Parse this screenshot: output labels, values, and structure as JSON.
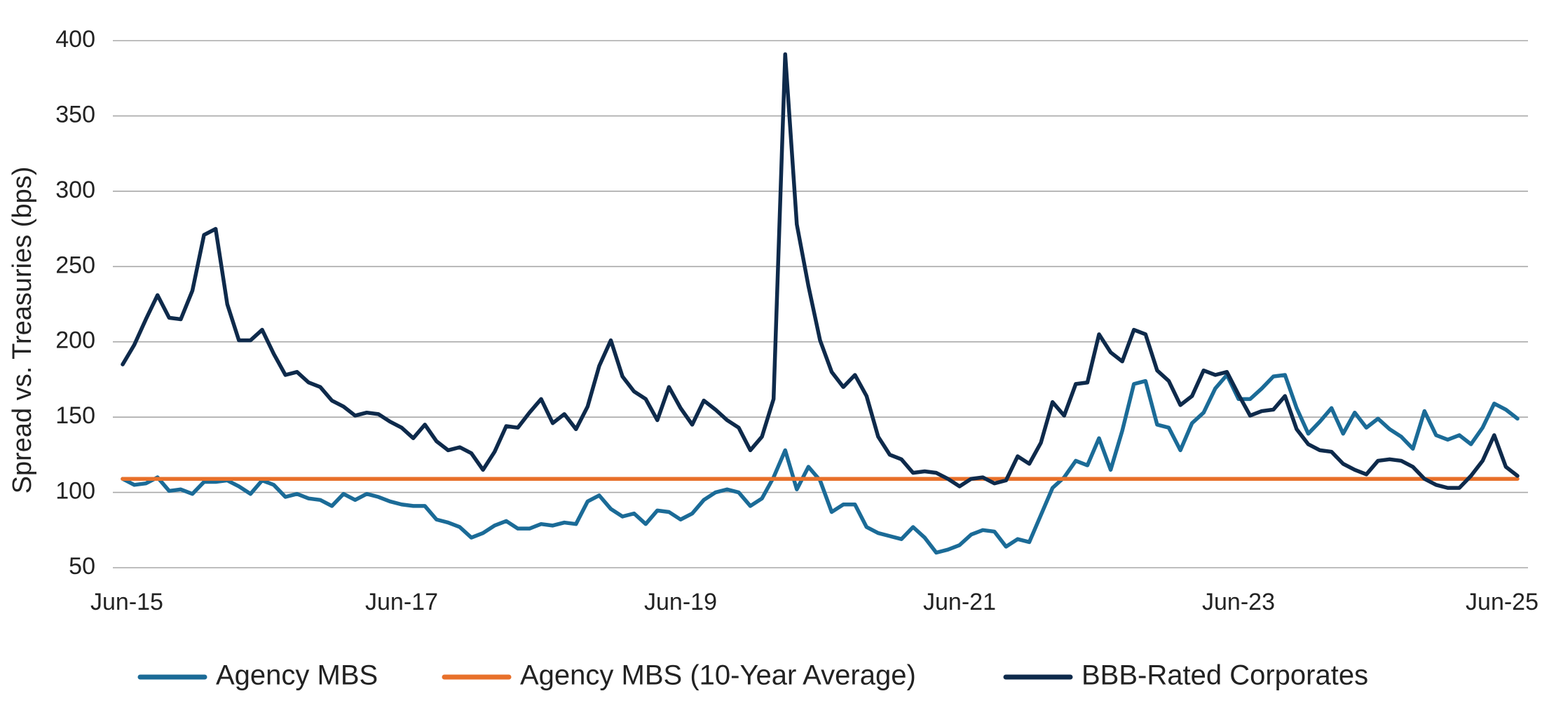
{
  "chart_data": {
    "type": "line",
    "y_label": "Spread vs. Treasuries (bps)",
    "categories": [
      "Jun-15",
      null,
      null,
      null,
      null,
      null,
      null,
      null,
      null,
      null,
      null,
      null,
      null,
      null,
      null,
      null,
      null,
      null,
      null,
      null,
      null,
      null,
      null,
      null,
      "Jun-17",
      null,
      null,
      null,
      null,
      null,
      null,
      null,
      null,
      null,
      null,
      null,
      null,
      null,
      null,
      null,
      null,
      null,
      null,
      null,
      null,
      null,
      null,
      null,
      "Jun-19",
      null,
      null,
      null,
      null,
      null,
      null,
      null,
      null,
      null,
      null,
      null,
      null,
      null,
      null,
      null,
      null,
      null,
      null,
      null,
      null,
      null,
      null,
      null,
      "Jun-21",
      null,
      null,
      null,
      null,
      null,
      null,
      null,
      null,
      null,
      null,
      null,
      null,
      null,
      null,
      null,
      null,
      null,
      null,
      null,
      null,
      null,
      null,
      null,
      "Jun-23",
      null,
      null,
      null,
      null,
      null,
      null,
      null,
      null,
      null,
      null,
      null,
      null,
      null,
      null,
      null,
      null,
      null,
      null,
      null,
      null,
      null,
      null,
      null,
      "Jun-25"
    ],
    "series": [
      {
        "name": "Agency MBS",
        "color": "#1b6b97",
        "values": [
          109,
          105,
          106,
          110,
          101,
          102,
          99,
          107,
          107,
          108,
          104,
          99,
          108,
          105,
          97,
          99,
          96,
          95,
          91,
          99,
          95,
          99,
          97,
          94,
          92,
          91,
          91,
          82,
          80,
          77,
          70,
          73,
          78,
          81,
          76,
          76,
          79,
          78,
          80,
          79,
          94,
          98,
          89,
          84,
          86,
          79,
          88,
          87,
          82,
          86,
          95,
          100,
          102,
          100,
          91,
          96,
          110,
          128,
          102,
          117,
          108,
          87,
          92,
          92,
          77,
          73,
          71,
          69,
          77,
          70,
          60,
          62,
          65,
          72,
          75,
          74,
          64,
          69,
          67,
          85,
          103,
          110,
          121,
          118,
          136,
          115,
          141,
          172,
          174,
          145,
          143,
          128,
          146,
          153,
          169,
          178,
          162,
          162,
          169,
          177,
          178,
          156,
          139,
          147,
          156,
          139,
          153,
          143,
          149,
          142,
          137,
          129,
          154,
          138,
          135,
          138,
          132,
          143,
          159,
          155,
          149
        ]
      },
      {
        "name": "Agency MBS (10-Year Average)",
        "color": "#e8702a",
        "values": [
          109,
          109,
          109,
          109,
          109,
          109,
          109,
          109,
          109,
          109,
          109,
          109,
          109,
          109,
          109,
          109,
          109,
          109,
          109,
          109,
          109,
          109,
          109,
          109,
          109,
          109,
          109,
          109,
          109,
          109,
          109,
          109,
          109,
          109,
          109,
          109,
          109,
          109,
          109,
          109,
          109,
          109,
          109,
          109,
          109,
          109,
          109,
          109,
          109,
          109,
          109,
          109,
          109,
          109,
          109,
          109,
          109,
          109,
          109,
          109,
          109,
          109,
          109,
          109,
          109,
          109,
          109,
          109,
          109,
          109,
          109,
          109,
          109,
          109,
          109,
          109,
          109,
          109,
          109,
          109,
          109,
          109,
          109,
          109,
          109,
          109,
          109,
          109,
          109,
          109,
          109,
          109,
          109,
          109,
          109,
          109,
          109,
          109,
          109,
          109,
          109,
          109,
          109,
          109,
          109,
          109,
          109,
          109,
          109,
          109,
          109,
          109,
          109,
          109,
          109,
          109,
          109,
          109,
          109,
          109,
          109
        ]
      },
      {
        "name": "BBB-Rated Corporates",
        "color": "#0e2a4b",
        "values": [
          185,
          198,
          215,
          231,
          216,
          215,
          234,
          271,
          275,
          225,
          201,
          201,
          208,
          192,
          178,
          180,
          173,
          170,
          161,
          157,
          151,
          153,
          152,
          147,
          143,
          136,
          145,
          134,
          128,
          130,
          126,
          115,
          127,
          144,
          143,
          153,
          162,
          146,
          152,
          142,
          157,
          184,
          201,
          177,
          167,
          162,
          148,
          170,
          156,
          145,
          161,
          155,
          148,
          143,
          128,
          137,
          162,
          391,
          278,
          237,
          201,
          180,
          170,
          178,
          164,
          137,
          125,
          122,
          113,
          114,
          113,
          109,
          104,
          109,
          110,
          106,
          108,
          124,
          119,
          133,
          160,
          151,
          172,
          173,
          205,
          193,
          187,
          208,
          205,
          181,
          174,
          158,
          164,
          181,
          178,
          180,
          165,
          151,
          154,
          155,
          164,
          142,
          132,
          128,
          127,
          119,
          115,
          112,
          121,
          122,
          121,
          117,
          109,
          105,
          103,
          103,
          111,
          121,
          138,
          117,
          111
        ]
      }
    ],
    "ylim": [
      50,
      400
    ],
    "yticks": [
      50,
      100,
      150,
      200,
      250,
      300,
      350,
      400
    ],
    "grid": true
  }
}
